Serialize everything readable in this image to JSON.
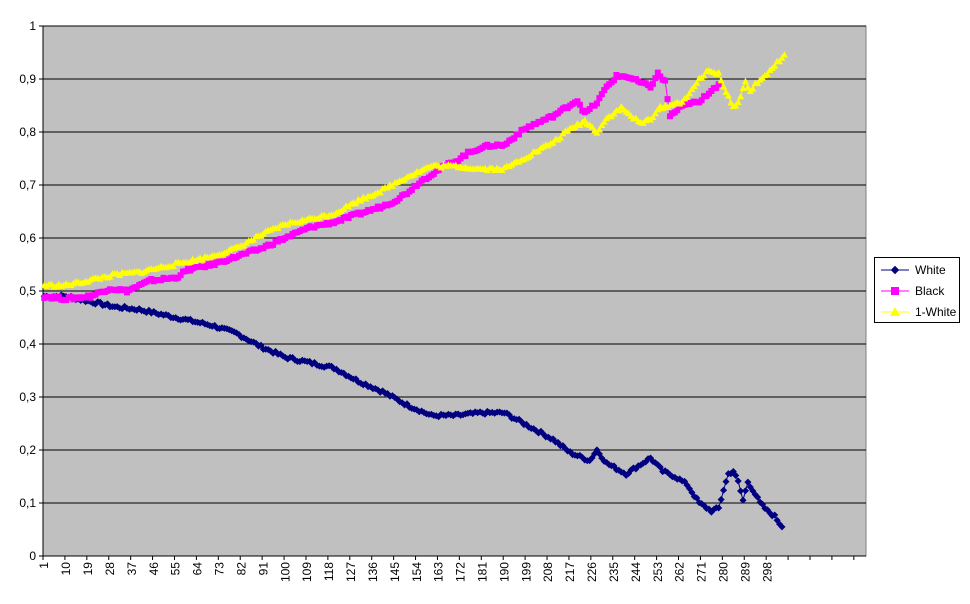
{
  "chart_data": {
    "type": "line",
    "x_start": 1,
    "x_end": 300,
    "x_tick_labels": [
      "1",
      "10",
      "19",
      "28",
      "37",
      "46",
      "55",
      "64",
      "73",
      "82",
      "91",
      "100",
      "109",
      "118",
      "127",
      "136",
      "145",
      "154",
      "163",
      "172",
      "181",
      "190",
      "199",
      "208",
      "217",
      "226",
      "235",
      "244",
      "253",
      "262",
      "271",
      "280",
      "289",
      "298"
    ],
    "y_tick_labels": [
      "0",
      "0,1",
      "0,2",
      "0,3",
      "0,4",
      "0,5",
      "0,6",
      "0,7",
      "0,8",
      "0,9",
      "1"
    ],
    "ylim": [
      0,
      1
    ],
    "grid": "horizontal",
    "legend_position": "right",
    "plot_background": "#c0c0c0",
    "series": [
      {
        "name": "White",
        "color": "#000080",
        "marker": "diamond",
        "points": [
          [
            1,
            0.49
          ],
          [
            10,
            0.49
          ],
          [
            20,
            0.48
          ],
          [
            30,
            0.47
          ],
          [
            40,
            0.465
          ],
          [
            50,
            0.455
          ],
          [
            60,
            0.445
          ],
          [
            70,
            0.435
          ],
          [
            80,
            0.42
          ],
          [
            90,
            0.395
          ],
          [
            100,
            0.375
          ],
          [
            110,
            0.365
          ],
          [
            120,
            0.355
          ],
          [
            130,
            0.33
          ],
          [
            140,
            0.31
          ],
          [
            150,
            0.285
          ],
          [
            160,
            0.265
          ],
          [
            170,
            0.265
          ],
          [
            180,
            0.27
          ],
          [
            190,
            0.27
          ],
          [
            200,
            0.245
          ],
          [
            210,
            0.22
          ],
          [
            217,
            0.195
          ],
          [
            225,
            0.18
          ],
          [
            228,
            0.2
          ],
          [
            232,
            0.175
          ],
          [
            240,
            0.155
          ],
          [
            245,
            0.17
          ],
          [
            250,
            0.185
          ],
          [
            255,
            0.16
          ],
          [
            260,
            0.15
          ],
          [
            265,
            0.135
          ],
          [
            270,
            0.1
          ],
          [
            275,
            0.085
          ],
          [
            278,
            0.09
          ],
          [
            280,
            0.125
          ],
          [
            282,
            0.155
          ],
          [
            284,
            0.16
          ],
          [
            286,
            0.14
          ],
          [
            288,
            0.105
          ],
          [
            290,
            0.14
          ],
          [
            292,
            0.125
          ],
          [
            295,
            0.1
          ],
          [
            298,
            0.085
          ],
          [
            301,
            0.075
          ],
          [
            304,
            0.055
          ]
        ]
      },
      {
        "name": "Black",
        "color": "#ff00ff",
        "marker": "square",
        "points": [
          [
            1,
            0.49
          ],
          [
            10,
            0.485
          ],
          [
            20,
            0.49
          ],
          [
            28,
            0.505
          ],
          [
            35,
            0.5
          ],
          [
            45,
            0.52
          ],
          [
            55,
            0.525
          ],
          [
            60,
            0.54
          ],
          [
            70,
            0.55
          ],
          [
            80,
            0.565
          ],
          [
            90,
            0.58
          ],
          [
            100,
            0.6
          ],
          [
            110,
            0.62
          ],
          [
            120,
            0.63
          ],
          [
            130,
            0.645
          ],
          [
            140,
            0.66
          ],
          [
            145,
            0.67
          ],
          [
            150,
            0.685
          ],
          [
            155,
            0.705
          ],
          [
            160,
            0.72
          ],
          [
            165,
            0.735
          ],
          [
            170,
            0.745
          ],
          [
            175,
            0.76
          ],
          [
            180,
            0.77
          ],
          [
            185,
            0.775
          ],
          [
            190,
            0.775
          ],
          [
            195,
            0.795
          ],
          [
            200,
            0.81
          ],
          [
            210,
            0.83
          ],
          [
            215,
            0.845
          ],
          [
            220,
            0.86
          ],
          [
            223,
            0.835
          ],
          [
            228,
            0.855
          ],
          [
            232,
            0.885
          ],
          [
            236,
            0.905
          ],
          [
            240,
            0.905
          ],
          [
            245,
            0.895
          ],
          [
            250,
            0.885
          ],
          [
            253,
            0.91
          ],
          [
            256,
            0.895
          ],
          [
            258,
            0.83
          ],
          [
            262,
            0.845
          ],
          [
            266,
            0.855
          ],
          [
            270,
            0.855
          ],
          [
            274,
            0.875
          ],
          [
            278,
            0.89
          ]
        ]
      },
      {
        "name": "1-White",
        "color": "#ffff00",
        "marker": "triangle",
        "points": [
          [
            1,
            0.51
          ],
          [
            10,
            0.51
          ],
          [
            20,
            0.52
          ],
          [
            30,
            0.53
          ],
          [
            40,
            0.535
          ],
          [
            50,
            0.545
          ],
          [
            60,
            0.555
          ],
          [
            70,
            0.565
          ],
          [
            80,
            0.58
          ],
          [
            90,
            0.605
          ],
          [
            100,
            0.625
          ],
          [
            110,
            0.635
          ],
          [
            120,
            0.645
          ],
          [
            130,
            0.67
          ],
          [
            140,
            0.69
          ],
          [
            150,
            0.715
          ],
          [
            160,
            0.735
          ],
          [
            170,
            0.735
          ],
          [
            180,
            0.73
          ],
          [
            190,
            0.73
          ],
          [
            200,
            0.755
          ],
          [
            210,
            0.78
          ],
          [
            217,
            0.805
          ],
          [
            223,
            0.82
          ],
          [
            228,
            0.8
          ],
          [
            232,
            0.825
          ],
          [
            238,
            0.845
          ],
          [
            242,
            0.83
          ],
          [
            246,
            0.815
          ],
          [
            250,
            0.825
          ],
          [
            254,
            0.845
          ],
          [
            258,
            0.85
          ],
          [
            262,
            0.855
          ],
          [
            266,
            0.87
          ],
          [
            270,
            0.9
          ],
          [
            274,
            0.915
          ],
          [
            278,
            0.91
          ],
          [
            281,
            0.875
          ],
          [
            284,
            0.845
          ],
          [
            287,
            0.865
          ],
          [
            289,
            0.895
          ],
          [
            291,
            0.875
          ],
          [
            293,
            0.89
          ],
          [
            296,
            0.9
          ],
          [
            299,
            0.915
          ],
          [
            302,
            0.93
          ],
          [
            305,
            0.945
          ]
        ]
      }
    ]
  }
}
